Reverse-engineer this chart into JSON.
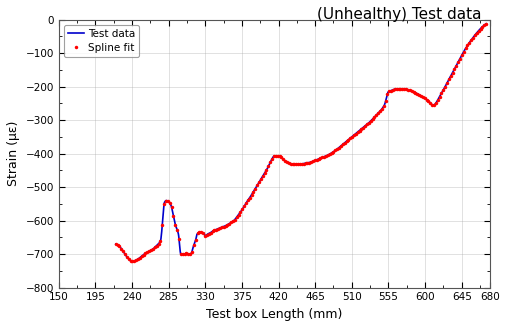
{
  "title": "(Unhealthy) Test data",
  "xlabel": "Test box Length (mm)",
  "ylabel": "Strain (με)",
  "xlim": [
    150,
    680
  ],
  "ylim": [
    -800,
    0
  ],
  "xticks": [
    150,
    195,
    240,
    285,
    330,
    375,
    420,
    465,
    510,
    555,
    600,
    645,
    680
  ],
  "yticks": [
    -800,
    -700,
    -600,
    -500,
    -400,
    -300,
    -200,
    -100,
    0
  ],
  "line_color": "#0000CC",
  "dot_color": "#FF0000",
  "legend_spline": "Spline fit",
  "legend_test": "Test data",
  "background_color": "#ffffff",
  "grid_color": "#aaaaaa"
}
